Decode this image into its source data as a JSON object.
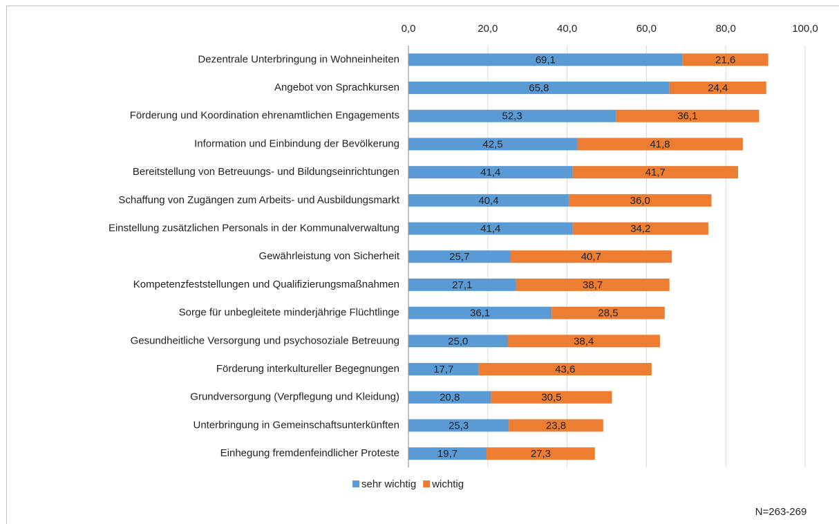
{
  "chart_data": {
    "type": "stacked_barh",
    "categories": [
      "Dezentrale Unterbringung in Wohneinheiten",
      "Angebot von Sprachkursen",
      "Förderung und Koordination ehrenamtlichen Engagements",
      "Information und Einbindung der Bevölkerung",
      "Bereitstellung von Betreuungs- und Bildungseinrichtungen",
      "Schaffung von Zugängen zum Arbeits- und Ausbildungsmarkt",
      "Einstellung zusätzlichen Personals in der Kommunalverwaltung",
      "Gewährleistung von Sicherheit",
      "Kompetenzfeststellungen und Qualifizierungsmaßnahmen",
      "Sorge für unbegleitete minderjährige Flüchtlinge",
      "Gesundheitliche Versorgung und psychosoziale Betreuung",
      "Förderung interkultureller Begegnungen",
      "Grundversorgung (Verpflegung und Kleidung)",
      "Unterbringung in Gemeinschaftsunterkünften",
      "Einhegung fremdenfeindlicher Proteste"
    ],
    "series": [
      {
        "name": "sehr wichtig",
        "color": "#5b9bd5",
        "values": [
          69.1,
          65.8,
          52.3,
          42.5,
          41.4,
          40.4,
          41.4,
          25.7,
          27.1,
          36.1,
          25.0,
          17.7,
          20.8,
          25.3,
          19.7
        ],
        "value_labels": [
          "69,1",
          "65,8",
          "52,3",
          "42,5",
          "41,4",
          "40,4",
          "41,4",
          "25,7",
          "27,1",
          "36,1",
          "25,0",
          "17,7",
          "20,8",
          "25,3",
          "19,7"
        ]
      },
      {
        "name": "wichtig",
        "color": "#ed7d31",
        "values": [
          21.6,
          24.4,
          36.1,
          41.8,
          41.7,
          36.0,
          34.2,
          40.7,
          38.7,
          28.5,
          38.4,
          43.6,
          30.5,
          23.8,
          27.3
        ],
        "value_labels": [
          "21,6",
          "24,4",
          "36,1",
          "41,8",
          "41,7",
          "36,0",
          "34,2",
          "40,7",
          "38,7",
          "28,5",
          "38,4",
          "43,6",
          "30,5",
          "23,8",
          "27,3"
        ]
      }
    ],
    "xlim": [
      0,
      100
    ],
    "xticks": [
      {
        "value": 0,
        "label": "0,0"
      },
      {
        "value": 20,
        "label": "20,0"
      },
      {
        "value": 40,
        "label": "40,0"
      },
      {
        "value": 60,
        "label": "60,0"
      },
      {
        "value": 80,
        "label": "80,0"
      },
      {
        "value": 100,
        "label": "100,0"
      }
    ],
    "grid": true,
    "legend": "bottom",
    "annotation": "N=263-269"
  }
}
